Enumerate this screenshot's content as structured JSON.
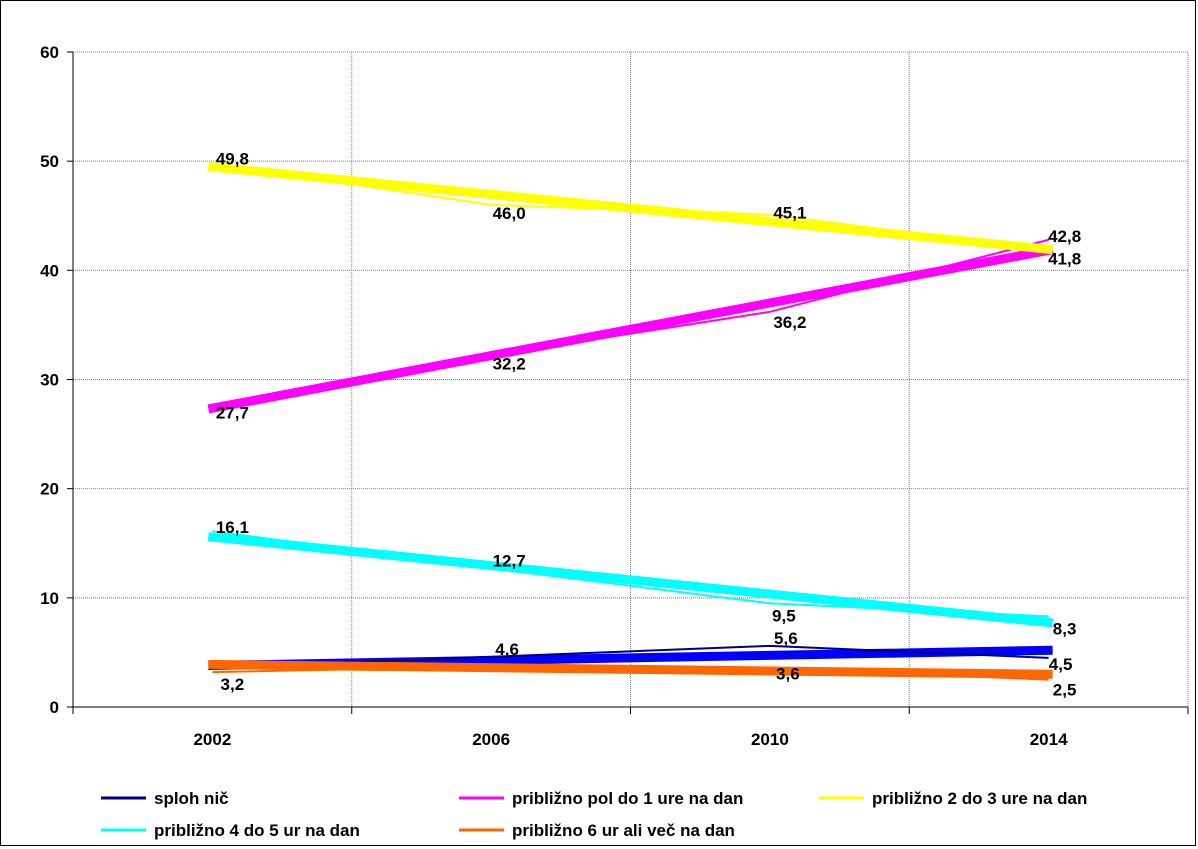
{
  "chart_data": {
    "type": "line",
    "title": "",
    "xlabel": "",
    "ylabel": "",
    "categories": [
      "2002",
      "2006",
      "2010",
      "2014"
    ],
    "ylim": [
      0,
      60
    ],
    "yticks": [
      "0",
      "10",
      "20",
      "30",
      "40",
      "50",
      "60"
    ],
    "grid": "on",
    "legend_position": "bottom",
    "series": [
      {
        "name": "sploh nič",
        "color": "#000080",
        "trend_color": "#0000ff",
        "values": [
          3.6,
          4.6,
          5.6,
          4.5
        ],
        "labels": [
          "",
          "4,6",
          "5,6",
          "4,5"
        ],
        "trend": [
          3.8,
          4.2,
          4.8,
          5.2
        ]
      },
      {
        "name": "približno pol do 1 ure na dan",
        "color": "#ff00ff",
        "trend_color": "#ff00ff",
        "values": [
          27.7,
          32.2,
          36.2,
          42.8
        ],
        "labels": [
          "27,7",
          "32,2",
          "36,2",
          "42,8"
        ],
        "trend": [
          27.3,
          32.4,
          37.3,
          41.9
        ]
      },
      {
        "name": "približno 2 do 3 ure na dan",
        "color": "#ffff00",
        "trend_color": "#ffff00",
        "values": [
          49.8,
          46.0,
          45.1,
          41.8
        ],
        "labels": [
          "49,8",
          "46,0",
          "45,1",
          "41,8"
        ],
        "trend": [
          49.5,
          46.6,
          44.4,
          41.9
        ]
      },
      {
        "name": "približno 4 do 5 ur na dan",
        "color": "#00ffff",
        "trend_color": "#00ffff",
        "values": [
          16.1,
          12.7,
          9.5,
          8.3
        ],
        "labels": [
          "16,1",
          "12,7",
          "9,5",
          "8,3"
        ],
        "trend": [
          15.6,
          12.8,
          10.1,
          7.7
        ]
      },
      {
        "name": "približno 6 ur ali več na dan",
        "color": "#ff6600",
        "trend_color": "#ff6600",
        "values": [
          3.2,
          3.7,
          3.6,
          2.5
        ],
        "labels": [
          "3,2",
          "",
          "3,6",
          "2,5"
        ],
        "trend": [
          3.9,
          3.6,
          3.3,
          3.0
        ]
      }
    ]
  }
}
